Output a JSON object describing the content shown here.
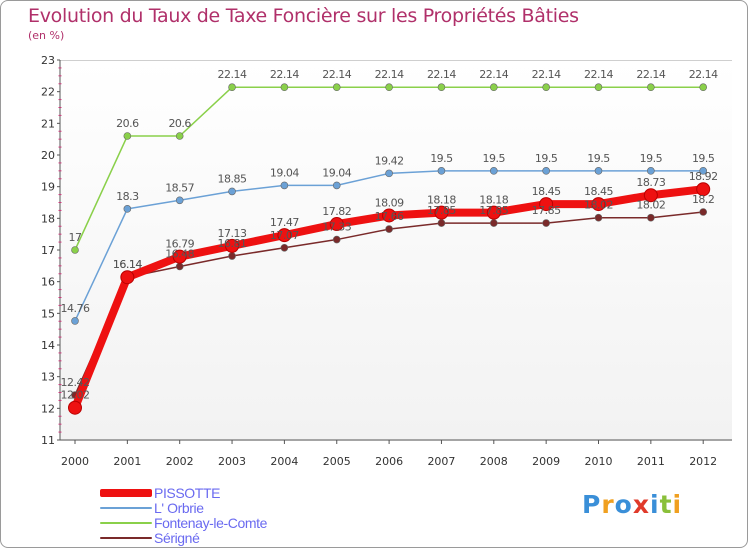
{
  "chart_data": {
    "type": "line",
    "title": "Evolution du Taux de Taxe Foncière sur les Propriétés Bâties",
    "ylabel": "(en %)",
    "xlabel": "",
    "ylim": [
      11,
      23
    ],
    "yticks": [
      "11",
      "12",
      "13",
      "14",
      "15",
      "16",
      "17",
      "18",
      "19",
      "20",
      "21",
      "22",
      "23"
    ],
    "categories": [
      "2000",
      "2001",
      "2002",
      "2003",
      "2004",
      "2005",
      "2006",
      "2007",
      "2008",
      "2009",
      "2010",
      "2011",
      "2012"
    ],
    "grid": false,
    "series": [
      {
        "name": "Fontenay-le-Comte",
        "color": "#8ad04a",
        "thick": false,
        "values": [
          17,
          20.6,
          20.6,
          22.14,
          22.14,
          22.14,
          22.14,
          22.14,
          22.14,
          22.14,
          22.14,
          22.14,
          22.14
        ],
        "labels": [
          "17",
          "20.6",
          "20.6",
          "22.14",
          "22.14",
          "22.14",
          "22.14",
          "22.14",
          "22.14",
          "22.14",
          "22.14",
          "22.14",
          "22.14"
        ]
      },
      {
        "name": "L' Orbrie",
        "color": "#6ba1d6",
        "thick": false,
        "values": [
          14.76,
          18.3,
          18.57,
          18.85,
          19.04,
          19.04,
          19.42,
          19.5,
          19.5,
          19.5,
          19.5,
          19.5,
          19.5
        ],
        "labels": [
          "14.76",
          "18.3",
          "18.57",
          "18.85",
          "19.04",
          "19.04",
          "19.42",
          "19.5",
          "19.5",
          "19.5",
          "19.5",
          "19.5",
          "19.5"
        ]
      },
      {
        "name": "Sérigné",
        "color": "#7a2a2a",
        "thick": false,
        "values": [
          12.42,
          16.14,
          16.48,
          16.81,
          17.07,
          17.33,
          17.66,
          17.85,
          17.85,
          17.85,
          18.02,
          18.02,
          18.2
        ],
        "labels": [
          "12.42",
          "16.14",
          "16.48",
          "16.81",
          "17.07",
          "17.33",
          "17.66",
          "17.85",
          "17.85",
          "17.85",
          "18.02",
          "18.02",
          "18.2"
        ]
      },
      {
        "name": "PISSOTTE",
        "color": "#ee1111",
        "thick": true,
        "values": [
          12.02,
          16.14,
          16.79,
          17.13,
          17.47,
          17.82,
          18.09,
          18.18,
          18.18,
          18.45,
          18.45,
          18.73,
          18.92
        ],
        "labels": [
          "12.02",
          "16.14",
          "16.79",
          "17.13",
          "17.47",
          "17.82",
          "18.09",
          "18.18",
          "18.18",
          "18.45",
          "18.45",
          "18.73",
          "18.92"
        ]
      }
    ],
    "legend": [
      {
        "name": "PISSOTTE",
        "color": "#ee1111",
        "text_color": "#6a6af0"
      },
      {
        "name": "L' Orbrie",
        "color": "#6ba1d6",
        "text_color": "#6a6af0"
      },
      {
        "name": "Fontenay-le-Comte",
        "color": "#8ad04a",
        "text_color": "#6a6af0"
      },
      {
        "name": "Sérigné",
        "color": "#7a2a2a",
        "text_color": "#6a6af0"
      }
    ],
    "legend_position": "bottom-left"
  },
  "logo": {
    "text": "Proxiti",
    "letters": [
      {
        "ch": "P",
        "color": "#3a8fd8"
      },
      {
        "ch": "r",
        "color": "#f0a020"
      },
      {
        "ch": "o",
        "color": "#3a8fd8"
      },
      {
        "ch": "x",
        "color": "#e03a2a"
      },
      {
        "ch": "i",
        "color": "#3a8fd8"
      },
      {
        "ch": "t",
        "color": "#8ac03a"
      },
      {
        "ch": "i",
        "color": "#f0a020"
      }
    ]
  }
}
